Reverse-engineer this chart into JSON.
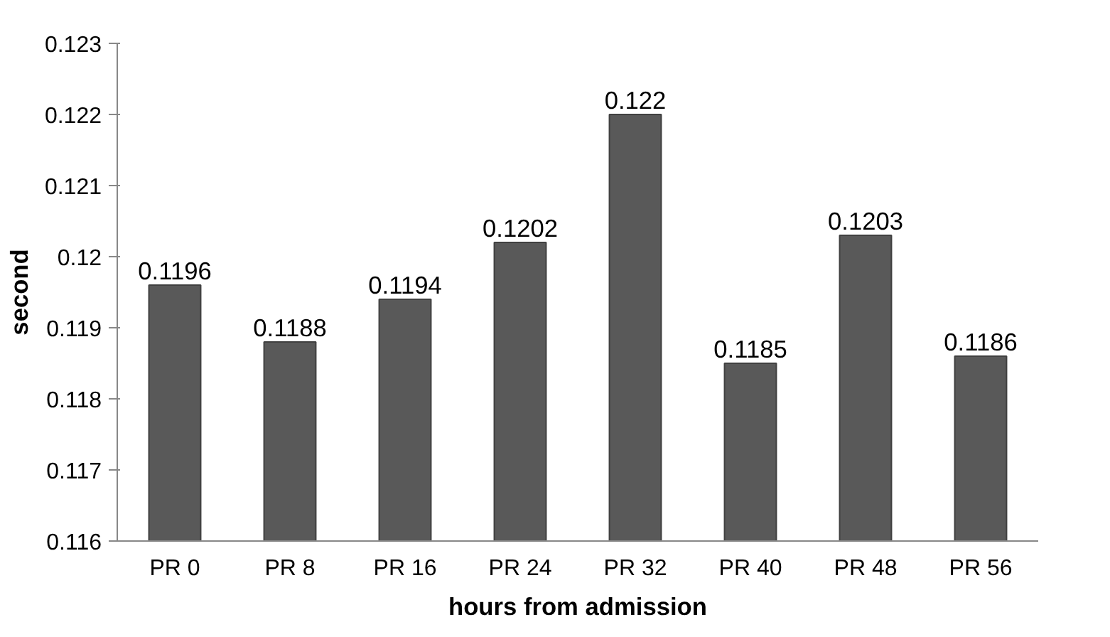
{
  "chart_data": {
    "type": "bar",
    "xlabel": "hours from admission",
    "ylabel": "second",
    "categories": [
      "PR 0",
      "PR 8",
      "PR 16",
      "PR 24",
      "PR 32",
      "PR 40",
      "PR 48",
      "PR 56"
    ],
    "values": [
      0.1196,
      0.1188,
      0.1194,
      0.1202,
      0.122,
      0.1185,
      0.1203,
      0.1186
    ],
    "color": "#595959",
    "ylim": [
      0.116,
      0.123
    ],
    "yticks": [
      0.116,
      0.117,
      0.118,
      0.119,
      0.12,
      0.121,
      0.122,
      0.123
    ],
    "data_labels": true,
    "grid": false
  }
}
